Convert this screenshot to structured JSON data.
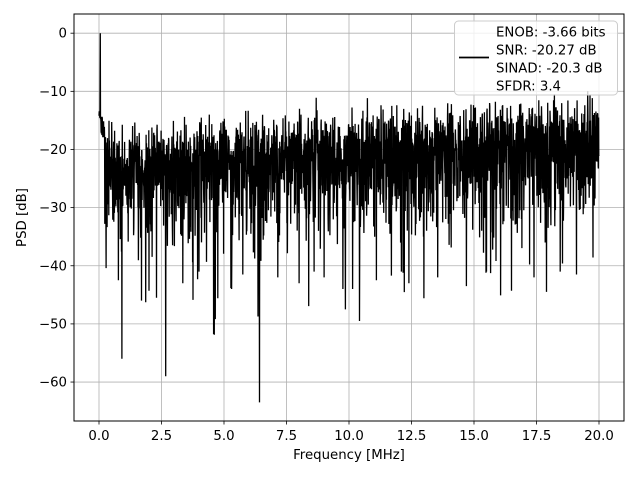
{
  "figure": {
    "background": "#ffffff"
  },
  "chart_data": {
    "type": "line",
    "title": "",
    "xlabel": "Frequency [MHz]",
    "ylabel": "PSD [dB]",
    "xlim": [
      -1.0,
      21.0
    ],
    "ylim": [
      -66.7,
      3.3
    ],
    "grid": true,
    "grid_color": "#b0b0b0",
    "axes_color": "#000000",
    "line_color": "#000000",
    "xticks": {
      "values": [
        0.0,
        2.5,
        5.0,
        7.5,
        10.0,
        12.5,
        15.0,
        17.5,
        20.0
      ],
      "labels": [
        "0.0",
        "2.5",
        "5.0",
        "7.5",
        "10.0",
        "12.5",
        "15.0",
        "17.5",
        "20.0"
      ]
    },
    "yticks": {
      "values": [
        0,
        -10,
        -20,
        -30,
        -40,
        -50,
        -60
      ],
      "labels": [
        "0",
        "−10",
        "−20",
        "−30",
        "−40",
        "−50",
        "−60"
      ]
    },
    "legend": {
      "position": "upper right",
      "framealpha": 0.8,
      "edge_color": "#cccccc",
      "entries": [
        {
          "color": "#000000",
          "label_lines": [
            "ENOB: -3.66 bits",
            "SNR: -20.27 dB",
            "SINAD: -20.3 dB",
            "SFDR: 3.4"
          ]
        }
      ]
    },
    "signal": {
      "description": "PSD of captured tone: fundamental spike at 0 MHz reaching 0 dB, broadband noise floor filling -35..-10 dB with sparse deep notches",
      "x_range": [
        0,
        20
      ],
      "n_points": 2400,
      "seed": 42,
      "fundamental": {
        "x": 0.05,
        "y_db": 0
      },
      "noise_mean_db_start": -22.5,
      "noise_mean_db_end": -17.5,
      "peak_envelope_db": [
        -13.5,
        -8.0
      ],
      "natural_floor_db": -52,
      "deep_minima": [
        [
          0.92,
          -56
        ],
        [
          1.7,
          -46
        ],
        [
          2.0,
          -44.3
        ],
        [
          2.3,
          -45.5
        ],
        [
          2.67,
          -59
        ],
        [
          3.35,
          -43
        ],
        [
          4.0,
          -41
        ],
        [
          4.75,
          -45.6
        ],
        [
          5.3,
          -44
        ],
        [
          5.75,
          -41.5
        ],
        [
          6.42,
          -63.5
        ],
        [
          7.15,
          -42
        ],
        [
          8.0,
          -43
        ],
        [
          8.6,
          -41
        ],
        [
          9.0,
          -42
        ],
        [
          9.75,
          -44
        ],
        [
          9.85,
          -47.5
        ],
        [
          10.15,
          -44
        ],
        [
          10.42,
          -49.5
        ],
        [
          11.1,
          -42.5
        ],
        [
          11.7,
          -41.7
        ],
        [
          12.1,
          -41
        ],
        [
          12.4,
          -43
        ],
        [
          13.0,
          -45.6
        ],
        [
          13.55,
          -42
        ],
        [
          14.7,
          -43.5
        ],
        [
          15.5,
          -41
        ],
        [
          16.5,
          -44.3
        ],
        [
          17.4,
          -42
        ],
        [
          17.9,
          -44.5
        ],
        [
          18.45,
          -41
        ],
        [
          19.1,
          -41.5
        ]
      ]
    }
  }
}
